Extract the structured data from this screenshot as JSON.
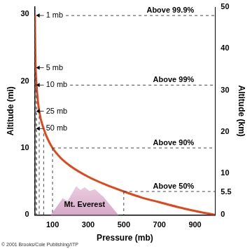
{
  "chart_data": {
    "type": "line",
    "x": [
      1,
      2,
      5,
      10,
      25,
      50,
      70,
      100,
      150,
      200,
      300,
      400,
      500,
      600,
      700,
      800,
      900,
      1013
    ],
    "values": [
      29.8,
      26.5,
      22,
      19.4,
      15.5,
      12.9,
      11.5,
      10,
      8.4,
      7.3,
      5.7,
      4.5,
      3.5,
      2.6,
      1.9,
      1.2,
      0.6,
      0
    ],
    "color": "#e2471c",
    "x_label": "Pressure (mb)",
    "y_label": "Altitude (mi)",
    "y2_label": "Altitude (km)",
    "xlim": [
      0,
      1013
    ],
    "xticks": [
      100,
      300,
      500,
      700,
      900
    ],
    "ylim": [
      0,
      31.07
    ],
    "yticks": [
      0,
      10,
      20,
      30
    ],
    "y2lim": [
      0,
      50
    ],
    "y2ticks": [
      0,
      5.5,
      10,
      20,
      30,
      40,
      50
    ],
    "grid": false,
    "levels": [
      {
        "pressure": 1,
        "altitude": 29.8,
        "label": "1 mb",
        "share": "Above 99.9%"
      },
      {
        "pressure": 5,
        "altitude": 22,
        "label": "5 mb"
      },
      {
        "pressure": 10,
        "altitude": 19.4,
        "label": "10 mb",
        "share": "Above 99%"
      },
      {
        "pressure": 25,
        "altitude": 15.5,
        "label": "25 mb"
      },
      {
        "pressure": 50,
        "altitude": 12.9,
        "label": "50 mb"
      },
      {
        "pressure": 100,
        "altitude": 10,
        "share": "Above 90%"
      },
      {
        "pressure": 500,
        "altitude": 3.5,
        "share": "Above 50%"
      }
    ],
    "mountain": {
      "label": "Mt. Everest",
      "altitude": 5.5
    },
    "credit": "© 2001 Brooks/Cole Publishing/ITP"
  }
}
